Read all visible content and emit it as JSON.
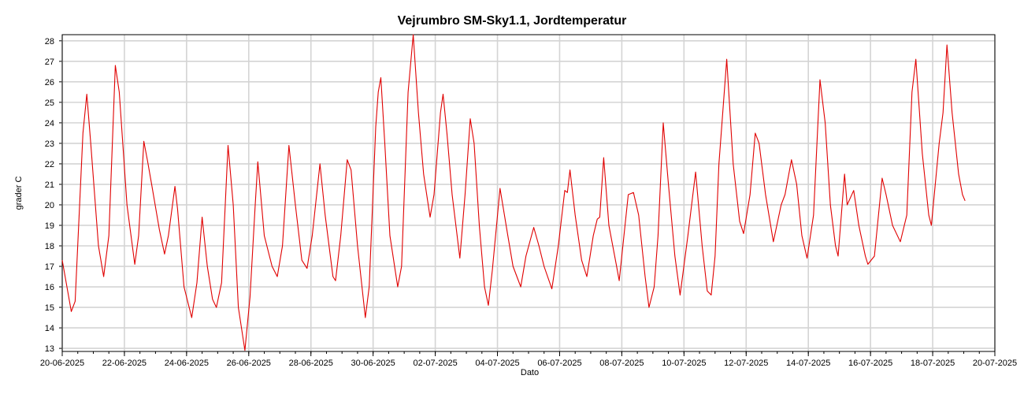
{
  "chart_data": {
    "type": "line",
    "title": "Vejrumbro SM-Sky1.1, Jordtemperatur",
    "xlabel": "Dato",
    "ylabel": "grader C",
    "x_ticks": [
      "20-06-2025",
      "22-06-2025",
      "24-06-2025",
      "26-06-2025",
      "28-06-2025",
      "30-06-2025",
      "02-07-2025",
      "04-07-2025",
      "06-07-2025",
      "08-07-2025",
      "10-07-2025",
      "12-07-2025",
      "14-07-2025",
      "16-07-2025",
      "18-07-2025",
      "20-07-2025"
    ],
    "y_ticks": [
      13,
      14,
      15,
      16,
      17,
      18,
      19,
      20,
      21,
      22,
      23,
      24,
      25,
      26,
      27,
      28
    ],
    "xlim": [
      "20-06-2025",
      "20-07-2025"
    ],
    "ylim": [
      12.85,
      28.3
    ],
    "grid": true,
    "line_color": "#e00000",
    "series": [
      {
        "points": [
          [
            "20-06-2025 00:00",
            17.3
          ],
          [
            "20-06-2025 07:00",
            14.8
          ],
          [
            "20-06-2025 10:00",
            15.3
          ],
          [
            "20-06-2025 16:00",
            23.5
          ],
          [
            "20-06-2025 19:00",
            25.4
          ],
          [
            "20-06-2025 22:00",
            23.0
          ],
          [
            "21-06-2025 04:00",
            18.0
          ],
          [
            "21-06-2025 08:00",
            16.5
          ],
          [
            "21-06-2025 12:00",
            18.5
          ],
          [
            "21-06-2025 17:00",
            26.8
          ],
          [
            "21-06-2025 20:00",
            25.5
          ],
          [
            "22-06-2025 02:00",
            20.0
          ],
          [
            "22-06-2025 08:00",
            17.1
          ],
          [
            "22-06-2025 11:00",
            18.5
          ],
          [
            "22-06-2025 15:00",
            23.1
          ],
          [
            "22-06-2025 18:00",
            22.1
          ],
          [
            "22-06-2025 21:00",
            21.0
          ],
          [
            "23-06-2025 03:00",
            18.8
          ],
          [
            "23-06-2025 07:00",
            17.6
          ],
          [
            "23-06-2025 10:00",
            18.5
          ],
          [
            "23-06-2025 15:00",
            20.9
          ],
          [
            "23-06-2025 17:00",
            19.8
          ],
          [
            "23-06-2025 22:00",
            16.0
          ],
          [
            "24-06-2025 04:00",
            14.5
          ],
          [
            "24-06-2025 08:00",
            16.2
          ],
          [
            "24-06-2025 12:00",
            19.4
          ],
          [
            "24-06-2025 16:00",
            17.0
          ],
          [
            "24-06-2025 20:00",
            15.4
          ],
          [
            "24-06-2025 23:00",
            15.0
          ],
          [
            "25-06-2025 03:00",
            16.2
          ],
          [
            "25-06-2025 08:00",
            22.9
          ],
          [
            "25-06-2025 12:00",
            20.0
          ],
          [
            "25-06-2025 16:00",
            15.0
          ],
          [
            "25-06-2025 21:00",
            12.9
          ],
          [
            "26-06-2025 01:00",
            15.5
          ],
          [
            "26-06-2025 05:00",
            20.0
          ],
          [
            "26-06-2025 07:00",
            22.1
          ],
          [
            "26-06-2025 12:00",
            18.5
          ],
          [
            "26-06-2025 18:00",
            17.0
          ],
          [
            "26-06-2025 22:00",
            16.5
          ],
          [
            "27-06-2025 02:00",
            18.0
          ],
          [
            "27-06-2025 07:00",
            22.9
          ],
          [
            "27-06-2025 12:00",
            20.0
          ],
          [
            "27-06-2025 17:00",
            17.3
          ],
          [
            "27-06-2025 21:00",
            16.9
          ],
          [
            "28-06-2025 01:00",
            18.5
          ],
          [
            "28-06-2025 07:00",
            22.0
          ],
          [
            "28-06-2025 11:00",
            19.5
          ],
          [
            "28-06-2025 17:00",
            16.5
          ],
          [
            "28-06-2025 19:00",
            16.3
          ],
          [
            "28-06-2025 23:00",
            18.5
          ],
          [
            "29-06-2025 04:00",
            22.2
          ],
          [
            "29-06-2025 07:00",
            21.7
          ],
          [
            "29-06-2025 12:00",
            18.0
          ],
          [
            "29-06-2025 18:00",
            14.5
          ],
          [
            "29-06-2025 21:00",
            16.0
          ],
          [
            "30-06-2025 02:00",
            23.8
          ],
          [
            "30-06-2025 04:00",
            25.5
          ],
          [
            "30-06-2025 06:00",
            26.2
          ],
          [
            "30-06-2025 09:00",
            23.0
          ],
          [
            "30-06-2025 13:00",
            18.5
          ],
          [
            "30-06-2025 19:00",
            16.0
          ],
          [
            "30-06-2025 22:00",
            17.0
          ],
          [
            "01-07-2025 03:00",
            25.5
          ],
          [
            "01-07-2025 07:00",
            28.3
          ],
          [
            "01-07-2025 11:00",
            24.5
          ],
          [
            "01-07-2025 15:00",
            21.5
          ],
          [
            "01-07-2025 20:00",
            19.4
          ],
          [
            "01-07-2025 23:00",
            20.5
          ],
          [
            "02-07-2025 04:00",
            24.5
          ],
          [
            "02-07-2025 06:00",
            25.4
          ],
          [
            "02-07-2025 09:00",
            23.5
          ],
          [
            "02-07-2025 13:00",
            20.5
          ],
          [
            "02-07-2025 19:00",
            17.4
          ],
          [
            "02-07-2025 23:00",
            20.5
          ],
          [
            "03-07-2025 03:00",
            24.2
          ],
          [
            "03-07-2025 06:00",
            23.0
          ],
          [
            "03-07-2025 10:00",
            19.0
          ],
          [
            "03-07-2025 14:00",
            16.0
          ],
          [
            "03-07-2025 17:00",
            15.1
          ],
          [
            "03-07-2025 20:00",
            16.8
          ],
          [
            "04-07-2025 02:00",
            20.8
          ],
          [
            "04-07-2025 08:00",
            18.5
          ],
          [
            "04-07-2025 12:00",
            17.0
          ],
          [
            "04-07-2025 18:00",
            16.0
          ],
          [
            "04-07-2025 22:00",
            17.5
          ],
          [
            "05-07-2025 04:00",
            18.9
          ],
          [
            "05-07-2025 08:00",
            18.0
          ],
          [
            "05-07-2025 12:00",
            17.0
          ],
          [
            "05-07-2025 18:00",
            15.9
          ],
          [
            "05-07-2025 23:00",
            18.0
          ],
          [
            "06-07-2025 04:00",
            20.7
          ],
          [
            "06-07-2025 06:00",
            20.6
          ],
          [
            "06-07-2025 08:00",
            21.7
          ],
          [
            "06-07-2025 12:00",
            19.5
          ],
          [
            "06-07-2025 17:00",
            17.3
          ],
          [
            "06-07-2025 21:00",
            16.5
          ],
          [
            "07-07-2025 02:00",
            18.5
          ],
          [
            "07-07-2025 05:00",
            19.3
          ],
          [
            "07-07-2025 07:00",
            19.4
          ],
          [
            "07-07-2025 10:00",
            22.3
          ],
          [
            "07-07-2025 14:00",
            19.0
          ],
          [
            "07-07-2025 20:00",
            17.0
          ],
          [
            "07-07-2025 22:00",
            16.3
          ],
          [
            "08-07-2025 05:00",
            20.5
          ],
          [
            "08-07-2025 09:00",
            20.6
          ],
          [
            "08-07-2025 13:00",
            19.5
          ],
          [
            "08-07-2025 18:00",
            16.5
          ],
          [
            "08-07-2025 21:00",
            15.0
          ],
          [
            "09-07-2025 01:00",
            16.0
          ],
          [
            "09-07-2025 04:00",
            18.5
          ],
          [
            "09-07-2025 08:00",
            24.0
          ],
          [
            "09-07-2025 12:00",
            21.0
          ],
          [
            "09-07-2025 17:00",
            17.5
          ],
          [
            "09-07-2025 21:00",
            15.6
          ],
          [
            "10-07-2025 03:00",
            18.5
          ],
          [
            "10-07-2025 09:00",
            21.6
          ],
          [
            "10-07-2025 14:00",
            18.0
          ],
          [
            "10-07-2025 18:00",
            15.8
          ],
          [
            "10-07-2025 21:00",
            15.6
          ],
          [
            "11-07-2025 00:00",
            17.5
          ],
          [
            "11-07-2025 03:00",
            22.0
          ],
          [
            "11-07-2025 09:00",
            27.1
          ],
          [
            "11-07-2025 14:00",
            22.0
          ],
          [
            "11-07-2025 19:00",
            19.2
          ],
          [
            "11-07-2025 22:00",
            18.6
          ],
          [
            "12-07-2025 03:00",
            20.5
          ],
          [
            "12-07-2025 07:00",
            23.5
          ],
          [
            "12-07-2025 10:00",
            23.0
          ],
          [
            "12-07-2025 15:00",
            20.5
          ],
          [
            "12-07-2025 21:00",
            18.2
          ],
          [
            "13-07-2025 03:00",
            20.0
          ],
          [
            "13-07-2025 06:00",
            20.5
          ],
          [
            "13-07-2025 11:00",
            22.2
          ],
          [
            "13-07-2025 15:00",
            21.0
          ],
          [
            "13-07-2025 19:00",
            18.5
          ],
          [
            "13-07-2025 23:00",
            17.4
          ],
          [
            "14-07-2025 04:00",
            19.5
          ],
          [
            "14-07-2025 09:00",
            26.1
          ],
          [
            "14-07-2025 13:00",
            24.0
          ],
          [
            "14-07-2025 17:00",
            20.0
          ],
          [
            "14-07-2025 21:00",
            18.0
          ],
          [
            "14-07-2025 23:00",
            17.5
          ],
          [
            "15-07-2025 04:00",
            21.5
          ],
          [
            "15-07-2025 06:00",
            20.0
          ],
          [
            "15-07-2025 11:00",
            20.7
          ],
          [
            "15-07-2025 15:00",
            19.0
          ],
          [
            "15-07-2025 20:00",
            17.5
          ],
          [
            "15-07-2025 22:00",
            17.1
          ],
          [
            "16-07-2025 03:00",
            17.5
          ],
          [
            "16-07-2025 09:00",
            21.3
          ],
          [
            "16-07-2025 12:00",
            20.5
          ],
          [
            "16-07-2025 17:00",
            19.0
          ],
          [
            "16-07-2025 23:00",
            18.2
          ],
          [
            "17-07-2025 04:00",
            19.5
          ],
          [
            "17-07-2025 08:00",
            25.5
          ],
          [
            "17-07-2025 11:00",
            27.1
          ],
          [
            "17-07-2025 16:00",
            22.5
          ],
          [
            "17-07-2025 21:00",
            19.5
          ],
          [
            "17-07-2025 23:00",
            19.0
          ],
          [
            "18-07-2025 05:00",
            23.0
          ],
          [
            "18-07-2025 08:00",
            24.5
          ],
          [
            "18-07-2025 11:00",
            27.8
          ],
          [
            "18-07-2025 15:00",
            24.5
          ],
          [
            "18-07-2025 20:00",
            21.5
          ],
          [
            "18-07-2025 23:00",
            20.5
          ],
          [
            "19-07-2025 01:00",
            20.2
          ]
        ]
      }
    ]
  }
}
